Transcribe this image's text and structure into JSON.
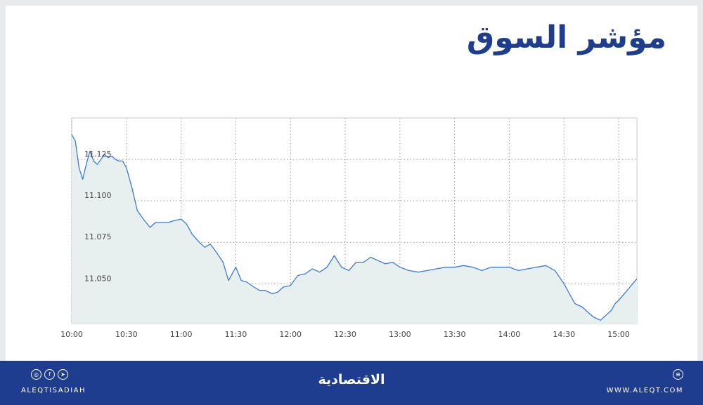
{
  "title": "مؤشر السوق",
  "footer": {
    "handle": "ALEQTISADIAH",
    "logo": "الاقتصادية",
    "website": "WWW.ALEQT.COM",
    "brand_color": "#1f3d8f"
  },
  "chart_data": {
    "type": "area",
    "title": "مؤشر السوق",
    "xlabel": "",
    "ylabel": "",
    "x_ticks": [
      "10:00",
      "10:30",
      "11:00",
      "11:30",
      "12:00",
      "12:30",
      "13:00",
      "13:30",
      "14:00",
      "14:30",
      "15:00"
    ],
    "y_ticks": [
      "11.050",
      "11.075",
      "11.100",
      "11.125"
    ],
    "ylim": [
      11.026,
      11.15
    ],
    "xlim": [
      "10:00",
      "15:10"
    ],
    "grid": true,
    "line_color": "#3a7bd5",
    "fill_color": "#e8f0ef",
    "series": [
      {
        "x": [
          "10:00",
          "10:02",
          "10:04",
          "10:06",
          "10:08",
          "10:10",
          "10:12",
          "10:14",
          "10:16",
          "10:18",
          "10:20",
          "10:22",
          "10:24",
          "10:26",
          "10:28",
          "10:30",
          "10:33",
          "10:36",
          "10:40",
          "10:43",
          "10:46",
          "10:50",
          "10:53",
          "10:56",
          "11:00",
          "11:03",
          "11:06",
          "11:10",
          "11:13",
          "11:16",
          "11:20",
          "11:23",
          "11:26",
          "11:30",
          "11:33",
          "11:36",
          "11:40",
          "11:43",
          "11:46",
          "11:50",
          "11:53",
          "11:56",
          "12:00",
          "12:04",
          "12:08",
          "12:12",
          "12:16",
          "12:20",
          "12:24",
          "12:28",
          "12:32",
          "12:36",
          "12:40",
          "12:44",
          "12:48",
          "12:52",
          "12:56",
          "13:00",
          "13:05",
          "13:10",
          "13:15",
          "13:20",
          "13:25",
          "13:30",
          "13:35",
          "13:40",
          "13:45",
          "13:50",
          "13:55",
          "14:00",
          "14:05",
          "14:10",
          "14:15",
          "14:20",
          "14:25",
          "14:30",
          "14:33",
          "14:36",
          "14:40",
          "14:43",
          "14:46",
          "14:50",
          "14:53",
          "14:56",
          "14:58",
          "15:00",
          "15:10"
        ],
        "y": [
          11.14,
          11.136,
          11.12,
          11.113,
          11.122,
          11.13,
          11.124,
          11.122,
          11.125,
          11.128,
          11.126,
          11.127,
          11.125,
          11.124,
          11.124,
          11.12,
          11.108,
          11.094,
          11.088,
          11.084,
          11.087,
          11.087,
          11.087,
          11.088,
          11.089,
          11.086,
          11.08,
          11.075,
          11.072,
          11.074,
          11.068,
          11.063,
          11.052,
          11.06,
          11.052,
          11.051,
          11.048,
          11.046,
          11.046,
          11.044,
          11.045,
          11.048,
          11.049,
          11.055,
          11.056,
          11.059,
          11.057,
          11.06,
          11.067,
          11.06,
          11.058,
          11.063,
          11.063,
          11.066,
          11.064,
          11.062,
          11.063,
          11.06,
          11.058,
          11.057,
          11.058,
          11.059,
          11.06,
          11.06,
          11.061,
          11.06,
          11.058,
          11.06,
          11.06,
          11.06,
          11.058,
          11.059,
          11.06,
          11.061,
          11.058,
          11.05,
          11.044,
          11.038,
          11.036,
          11.033,
          11.03,
          11.028,
          11.031,
          11.034,
          11.038,
          11.04,
          11.053
        ]
      }
    ]
  }
}
